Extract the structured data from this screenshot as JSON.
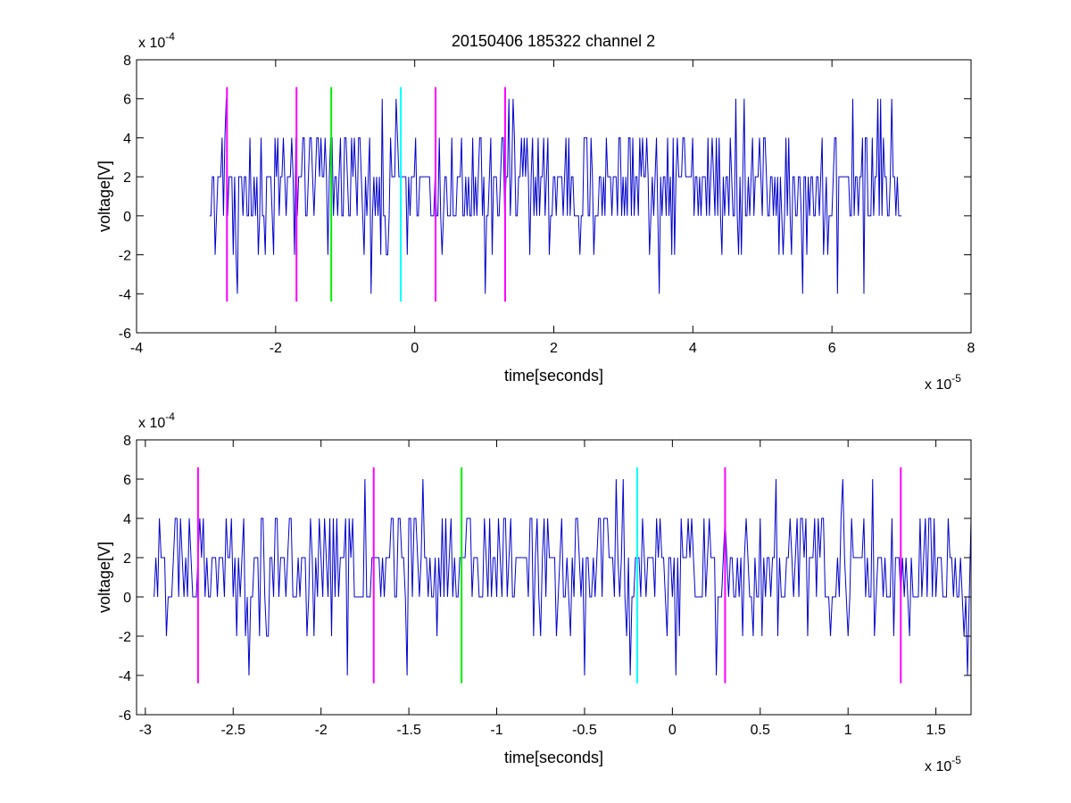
{
  "title": "20150406 185322 channel 2",
  "chart_data": [
    {
      "type": "line",
      "xlabel": "time[seconds]",
      "ylabel": "voltage[V]",
      "x_exponent": "x 10",
      "x_exponent_power": "-5",
      "y_exponent": "x 10",
      "y_exponent_power": "-4",
      "xlim": [
        -4,
        8
      ],
      "ylim": [
        -6,
        8
      ],
      "xticks": [
        -4,
        -2,
        0,
        2,
        4,
        6,
        8
      ],
      "xtick_labels": [
        "-4",
        "-2",
        "0",
        "2",
        "4",
        "6",
        "8"
      ],
      "yticks": [
        -6,
        -4,
        -2,
        0,
        2,
        4,
        6,
        8
      ],
      "ytick_labels": [
        "-6",
        "-4",
        "-2",
        "0",
        "2",
        "4",
        "6",
        "8"
      ],
      "grid": false,
      "series": [
        {
          "color": "#0000cc",
          "x_range": [
            -2.95,
            7.0
          ],
          "description": "quantized voltage noise at levels -4,-2,0,2,4,6 (x1e-4 V)",
          "samples_per_unit": 50
        }
      ],
      "markers": [
        {
          "x": -2.7,
          "color": "#ff00ff",
          "y_range": [
            -4.4,
            6.6
          ]
        },
        {
          "x": -1.7,
          "color": "#ff00ff",
          "y_range": [
            -4.4,
            6.6
          ]
        },
        {
          "x": -1.2,
          "color": "#00ee00",
          "y_range": [
            -4.4,
            6.6
          ]
        },
        {
          "x": -0.2,
          "color": "#00ffff",
          "y_range": [
            -4.4,
            6.6
          ]
        },
        {
          "x": 0.3,
          "color": "#ff00ff",
          "y_range": [
            -4.4,
            6.6
          ]
        },
        {
          "x": 1.3,
          "color": "#ff00ff",
          "y_range": [
            -4.4,
            6.6
          ]
        }
      ]
    },
    {
      "type": "line",
      "xlabel": "time[seconds]",
      "ylabel": "voltage[V]",
      "x_exponent": "x 10",
      "x_exponent_power": "-5",
      "y_exponent": "x 10",
      "y_exponent_power": "-4",
      "xlim": [
        -3.05,
        1.7
      ],
      "ylim": [
        -6,
        8
      ],
      "xticks": [
        -3,
        -2.5,
        -2,
        -1.5,
        -1,
        -0.5,
        0,
        0.5,
        1,
        1.5
      ],
      "xtick_labels": [
        "-3",
        "-2.5",
        "-2",
        "-1.5",
        "-1",
        "-0.5",
        "0",
        "0.5",
        "1",
        "1.5"
      ],
      "yticks": [
        -6,
        -4,
        -2,
        0,
        2,
        4,
        6,
        8
      ],
      "ytick_labels": [
        "-6",
        "-4",
        "-2",
        "0",
        "2",
        "4",
        "6",
        "8"
      ],
      "grid": false,
      "series": [
        {
          "color": "#0000cc",
          "x_range": [
            -2.95,
            1.7
          ],
          "description": "zoomed quantized voltage noise (x1e-4 V)",
          "samples_per_unit": 100
        }
      ],
      "markers": [
        {
          "x": -2.7,
          "color": "#ff00ff",
          "y_range": [
            -4.4,
            6.6
          ]
        },
        {
          "x": -1.7,
          "color": "#ff00ff",
          "y_range": [
            -4.4,
            6.6
          ]
        },
        {
          "x": -1.2,
          "color": "#00ee00",
          "y_range": [
            -4.4,
            6.6
          ]
        },
        {
          "x": -0.2,
          "color": "#00ffff",
          "y_range": [
            -4.4,
            6.6
          ]
        },
        {
          "x": 0.3,
          "color": "#ff00ff",
          "y_range": [
            -4.4,
            6.6
          ]
        },
        {
          "x": 1.3,
          "color": "#ff00ff",
          "y_range": [
            -4.4,
            6.6
          ]
        }
      ]
    }
  ]
}
